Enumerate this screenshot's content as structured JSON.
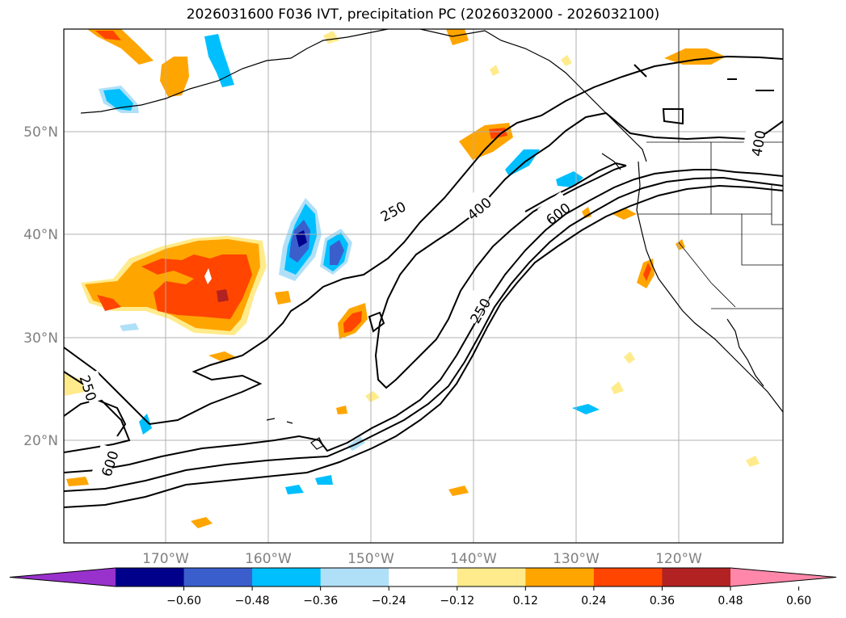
{
  "title": "2026031600 F036 IVT, precipitation PC (2026032000 - 2026032100)",
  "map": {
    "lat_labels": [
      "50°N",
      "40°N",
      "30°N",
      "20°N"
    ],
    "lon_labels": [
      "170°W",
      "160°W",
      "150°W",
      "140°W",
      "130°W",
      "120°W"
    ],
    "ivt_contour_labels": [
      "250",
      "400",
      "600",
      "250",
      "400",
      "250",
      "600"
    ]
  },
  "colorbar": {
    "ticks": [
      "−0.60",
      "−0.48",
      "−0.36",
      "−0.24",
      "−0.12",
      "0.12",
      "0.24",
      "0.36",
      "0.48",
      "0.60"
    ],
    "colors": [
      "#9932cc",
      "#00008b",
      "#3a5fcd",
      "#00bfff",
      "#b0e0f8",
      "#ffffff",
      "#ffeb8c",
      "#ffa500",
      "#ff4500",
      "#b22222",
      "#ff88aa"
    ]
  },
  "colors": {
    "grid": "#b0b0b0",
    "contour": "#000000",
    "neg1": "#b0e0f8",
    "neg2": "#00bfff",
    "neg3": "#3a5fcd",
    "neg4": "#00008b",
    "pos1": "#ffeb8c",
    "pos2": "#ffa500",
    "pos3": "#ff4500",
    "pos4": "#b22222"
  }
}
